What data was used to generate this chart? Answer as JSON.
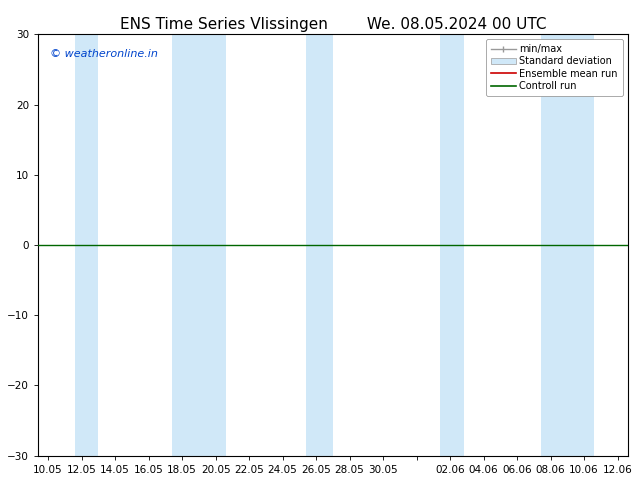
{
  "title_left": "ENS Time Series Vlissingen",
  "title_right": "We. 08.05.2024 00 UTC",
  "ylim": [
    -30,
    30
  ],
  "yticks": [
    -30,
    -20,
    -10,
    0,
    10,
    20,
    30
  ],
  "xtick_labels": [
    "10.05",
    "12.05",
    "14.05",
    "16.05",
    "18.05",
    "20.05",
    "22.05",
    "24.05",
    "26.05",
    "28.05",
    "30.05",
    "",
    "02.06",
    "04.06",
    "06.06",
    "08.06",
    "10.06",
    "12.06"
  ],
  "band_color": "#d0e8f8",
  "background_color": "#ffffff",
  "plot_bg_color": "#ffffff",
  "zero_line_color": "#006600",
  "watermark": "© weatheronline.in",
  "watermark_color": "#0044cc",
  "legend_items": [
    "min/max",
    "Standard deviation",
    "Ensemble mean run",
    "Controll run"
  ],
  "legend_line_colors": [
    "#999999",
    "#bbccdd",
    "#cc0000",
    "#006600"
  ],
  "title_fontsize": 11,
  "tick_fontsize": 7.5,
  "blue_bands_x": [
    1,
    4,
    4.5,
    7,
    8
  ],
  "note": "bands at tick indices: 12.05 band, 18.05-20.05 wide band, 25.05-26.05, 02.06, 08.06-10.06"
}
